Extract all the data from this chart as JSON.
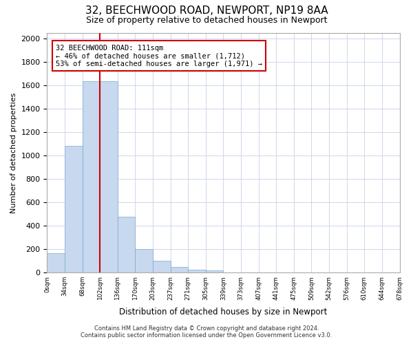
{
  "title_line1": "32, BEECHWOOD ROAD, NEWPORT, NP19 8AA",
  "title_line2": "Size of property relative to detached houses in Newport",
  "xlabel": "Distribution of detached houses by size in Newport",
  "ylabel": "Number of detached properties",
  "bar_values": [
    165,
    1080,
    1635,
    1635,
    480,
    200,
    100,
    45,
    25,
    20,
    0,
    0,
    0,
    0,
    0,
    0,
    0,
    0,
    0,
    0
  ],
  "bin_labels": [
    "0sqm",
    "34sqm",
    "68sqm",
    "102sqm",
    "136sqm",
    "170sqm",
    "203sqm",
    "237sqm",
    "271sqm",
    "305sqm",
    "339sqm",
    "373sqm",
    "407sqm",
    "441sqm",
    "475sqm",
    "509sqm",
    "542sqm",
    "576sqm",
    "610sqm",
    "644sqm",
    "678sqm"
  ],
  "bar_color": "#c8d8ee",
  "bar_edgecolor": "#7aaad0",
  "annotation_line1": "32 BEECHWOOD ROAD: 111sqm",
  "annotation_line2": "← 46% of detached houses are smaller (1,712)",
  "annotation_line3": "53% of semi-detached houses are larger (1,971) →",
  "vline_x_bin": 3,
  "vline_color": "#cc0000",
  "ylim": [
    0,
    2050
  ],
  "yticks": [
    0,
    200,
    400,
    600,
    800,
    1000,
    1200,
    1400,
    1600,
    1800,
    2000
  ],
  "footer_line1": "Contains HM Land Registry data © Crown copyright and database right 2024.",
  "footer_line2": "Contains public sector information licensed under the Open Government Licence v3.0.",
  "plot_bg_color": "#ffffff",
  "grid_color": "#c8d0e8"
}
